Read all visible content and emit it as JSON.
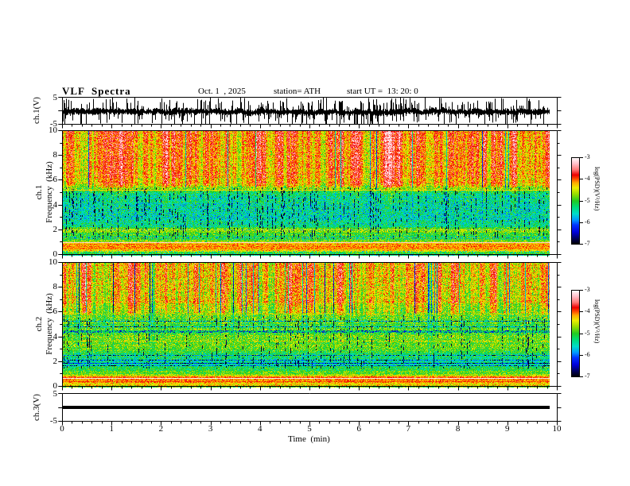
{
  "header": {
    "title": "VLF  Spectra",
    "date": "Oct. 1  , 2025",
    "station": "station= ATH",
    "start_ut": "start UT =  13: 20: 0"
  },
  "axes": {
    "time_label": "Time  (min)",
    "time_major_ticks": [
      0,
      1,
      2,
      3,
      4,
      5,
      6,
      7,
      8,
      9,
      10
    ],
    "time_minor_step": 0.2,
    "time_range_min": [
      0,
      10
    ],
    "data_end_min": 9.85,
    "freq_major_ticks": [
      10,
      8,
      6,
      4,
      2,
      0
    ],
    "freq_minor_step": 1,
    "freq_range_khz": [
      0,
      10
    ],
    "volt_ticks": [
      5,
      -5
    ],
    "volt_range": [
      -5,
      5
    ]
  },
  "ylabels": {
    "wave1": "ch.1(V)",
    "spec1_ch": "ch.1",
    "spec1_axis": "Frequency  (kHz)",
    "spec2_ch": "ch.2",
    "spec2_axis": "Frequency  (kHz)",
    "wave3": "ch.3(V)"
  },
  "colorbar": {
    "label": "log(PSD)(V²/Hz)",
    "ticks": [
      -3,
      -4,
      -5,
      -6,
      -7
    ],
    "range": [
      -7,
      -3
    ],
    "stops": [
      [
        0,
        "#000000"
      ],
      [
        0.06,
        "#000055"
      ],
      [
        0.14,
        "#0000dd"
      ],
      [
        0.22,
        "#0033ff"
      ],
      [
        0.28,
        "#0099ff"
      ],
      [
        0.35,
        "#00ddcc"
      ],
      [
        0.43,
        "#00dd77"
      ],
      [
        0.5,
        "#22cc22"
      ],
      [
        0.58,
        "#99dd00"
      ],
      [
        0.65,
        "#eeee00"
      ],
      [
        0.71,
        "#ffaa00"
      ],
      [
        0.75,
        "#ff5500"
      ],
      [
        0.8,
        "#ee0000"
      ],
      [
        0.86,
        "#ff7777"
      ],
      [
        0.93,
        "#ffc0cb"
      ],
      [
        1,
        "#ffffff"
      ]
    ]
  },
  "chart_data": [
    {
      "type": "line",
      "name": "ch.1 time waveform",
      "ylabel": "ch.1(V)",
      "ylim": [
        -5,
        5
      ],
      "xlim": [
        0,
        10
      ],
      "description": "Broadband noisy VLF waveform: dense black band around -0.4 V (about +/-1.2 V) with frequent narrow spikes reaching +/-5 V across the whole 0-9.85 min record.",
      "seed": 7,
      "mean": -0.4,
      "band": 0.85,
      "spike_p": 0.3,
      "spike_max": 4.6
    },
    {
      "type": "heatmap",
      "name": "ch.1 spectrogram",
      "ylabel": "ch.1 Frequency (kHz)",
      "ylim": [
        0,
        10
      ],
      "xlim": [
        0,
        10
      ],
      "value_label": "log(PSD)(V²/Hz)",
      "value_range": [
        -7,
        -3
      ],
      "description": "Red/orange band above ~5.5 kHz with yellow and dark-green vertical striations; green/cyan 2-5.5 kHz with dense black sferic dashes; yellow-green band near 2 kHz; white line near 1 kHz over a red band 0.3-1 kHz; thin red line near 5.25 kHz.",
      "seed": 42,
      "profile": [
        [
          0,
          -5.3,
          0.5
        ],
        [
          0.25,
          -5.0,
          0.5
        ],
        [
          0.4,
          -4.35,
          0.35
        ],
        [
          0.7,
          -4.05,
          0.3
        ],
        [
          0.95,
          -4.2,
          0.3
        ],
        [
          1.15,
          -4.9,
          0.4
        ],
        [
          1.5,
          -5.15,
          0.45
        ],
        [
          2.0,
          -4.65,
          0.35
        ],
        [
          2.35,
          -5.3,
          0.45
        ],
        [
          3.0,
          -5.45,
          0.5
        ],
        [
          4.5,
          -5.4,
          0.5
        ],
        [
          5.1,
          -5.2,
          0.45
        ],
        [
          5.45,
          -4.6,
          0.5
        ],
        [
          5.8,
          -4.15,
          0.4
        ],
        [
          7.0,
          -4.05,
          0.4
        ],
        [
          10,
          -4.0,
          0.4
        ]
      ],
      "streak": {
        "f0": 2.0,
        "f1": 5.5,
        "mid": 0.35,
        "amp": 0.55,
        "green_p": 0.035,
        "green_depth": 1.5
      },
      "impulse": {
        "p": 0.2,
        "f0": 1.3,
        "f1": 5.5
      },
      "lines": [
        [
          5.25,
          -4.35,
          1
        ],
        [
          2.05,
          -4.55,
          1
        ],
        [
          1.42,
          -4.8,
          1
        ],
        [
          1.05,
          -3.25,
          1
        ],
        [
          0.88,
          -4.05,
          1
        ],
        [
          0.6,
          -4.1,
          2
        ],
        [
          0.3,
          -4.5,
          1
        ]
      ]
    },
    {
      "type": "heatmap",
      "name": "ch.2 spectrogram",
      "ylabel": "ch.2 Frequency (kHz)",
      "ylim": [
        0,
        10
      ],
      "xlim": [
        0,
        10
      ],
      "value_label": "log(PSD)(V²/Hz)",
      "value_range": [
        -7,
        -3
      ],
      "description": "Red/orange/yellow striations above ~6 kHz cut by narrow green vertical lines; yellow-green 3-5 kHz; dark horizontal lines near 5.3, 4.9, 4.5, 2.5, 2.2, 1.95, 1.75 kHz; bright red band 0.3-1 kHz with white line near 0.72 kHz.",
      "seed": 1337,
      "profile": [
        [
          0,
          -4.7,
          0.5
        ],
        [
          0.2,
          -4.3,
          0.4
        ],
        [
          0.55,
          -4.05,
          0.3
        ],
        [
          0.8,
          -4.0,
          0.3
        ],
        [
          1.05,
          -4.75,
          0.4
        ],
        [
          1.4,
          -5.1,
          0.4
        ],
        [
          1.8,
          -5.3,
          0.4
        ],
        [
          2.1,
          -5.35,
          0.45
        ],
        [
          2.5,
          -5.2,
          0.45
        ],
        [
          3.0,
          -4.9,
          0.4
        ],
        [
          3.8,
          -4.75,
          0.45
        ],
        [
          4.3,
          -4.85,
          0.45
        ],
        [
          5.0,
          -5.05,
          0.45
        ],
        [
          5.6,
          -4.8,
          0.5
        ],
        [
          6.2,
          -4.5,
          0.45
        ],
        [
          7.0,
          -4.3,
          0.45
        ],
        [
          10,
          -4.2,
          0.45
        ]
      ],
      "streak": {
        "f0": 2.2,
        "f1": 6.0,
        "mid": 0.4,
        "amp": 0.6,
        "green_p": 0.06,
        "green_depth": 1.6
      },
      "impulse": {
        "p": 0.11,
        "f0": 1.5,
        "f1": 5.8
      },
      "lines": [
        [
          5.3,
          -5.75,
          1
        ],
        [
          4.9,
          -5.7,
          1
        ],
        [
          4.5,
          -5.2,
          2
        ],
        [
          2.55,
          -5.8,
          1
        ],
        [
          2.2,
          -5.9,
          1
        ],
        [
          1.95,
          -6.1,
          1
        ],
        [
          1.75,
          -5.9,
          1
        ],
        [
          0.72,
          -3.15,
          1
        ],
        [
          0.45,
          -3.95,
          1
        ],
        [
          0.25,
          -4.3,
          1
        ]
      ]
    },
    {
      "type": "line",
      "name": "ch.3 time waveform",
      "ylabel": "ch.3(V)",
      "ylim": [
        -5,
        5
      ],
      "xlim": [
        0,
        10
      ],
      "description": "Flat (dead/clipped) channel: constant thick black trace at 0 V from 0 to 9.85 min.",
      "flat": true,
      "value": 0
    }
  ]
}
